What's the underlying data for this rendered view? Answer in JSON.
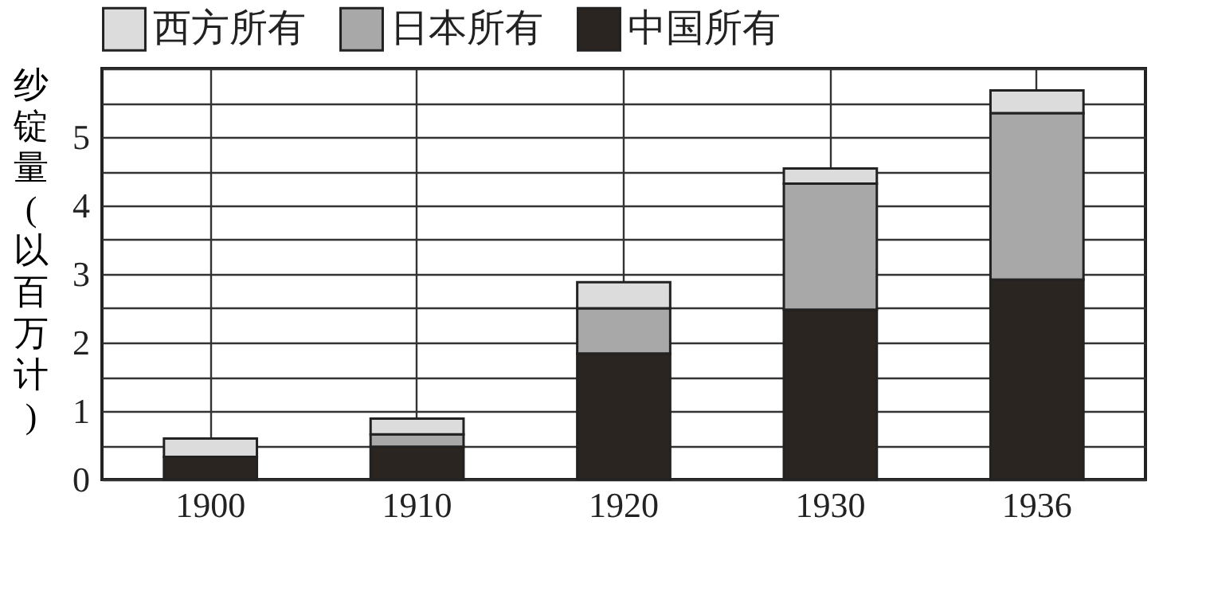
{
  "chart_data": {
    "type": "bar",
    "stacked": true,
    "ylabel": "纱锭量(以百万计)",
    "categories": [
      "1900",
      "1910",
      "1920",
      "1930",
      "1936"
    ],
    "series": [
      {
        "name": "中国所有",
        "color": "#2b2522",
        "values": [
          0.33,
          0.48,
          1.84,
          2.48,
          2.92
        ]
      },
      {
        "name": "日本所有",
        "color": "#a8a8a8",
        "values": [
          0,
          0.18,
          0.66,
          1.84,
          2.43
        ]
      },
      {
        "name": "西方所有",
        "color": "#dcdcdc",
        "values": [
          0.27,
          0.23,
          0.38,
          0.22,
          0.33
        ]
      }
    ],
    "ylim": [
      0,
      6
    ],
    "yticks": [
      0,
      {
        "value": 0.5,
        "label": null
      },
      1,
      {
        "value": 1.5,
        "label": null
      },
      2,
      {
        "value": 2.5,
        "label": null
      },
      3,
      {
        "value": 3.5,
        "label": null
      },
      4,
      {
        "value": 4.5,
        "label": null
      },
      5,
      {
        "value": 5.5,
        "label": null
      },
      {
        "value": 6,
        "label": null
      }
    ],
    "grid": true,
    "legend": "top"
  }
}
